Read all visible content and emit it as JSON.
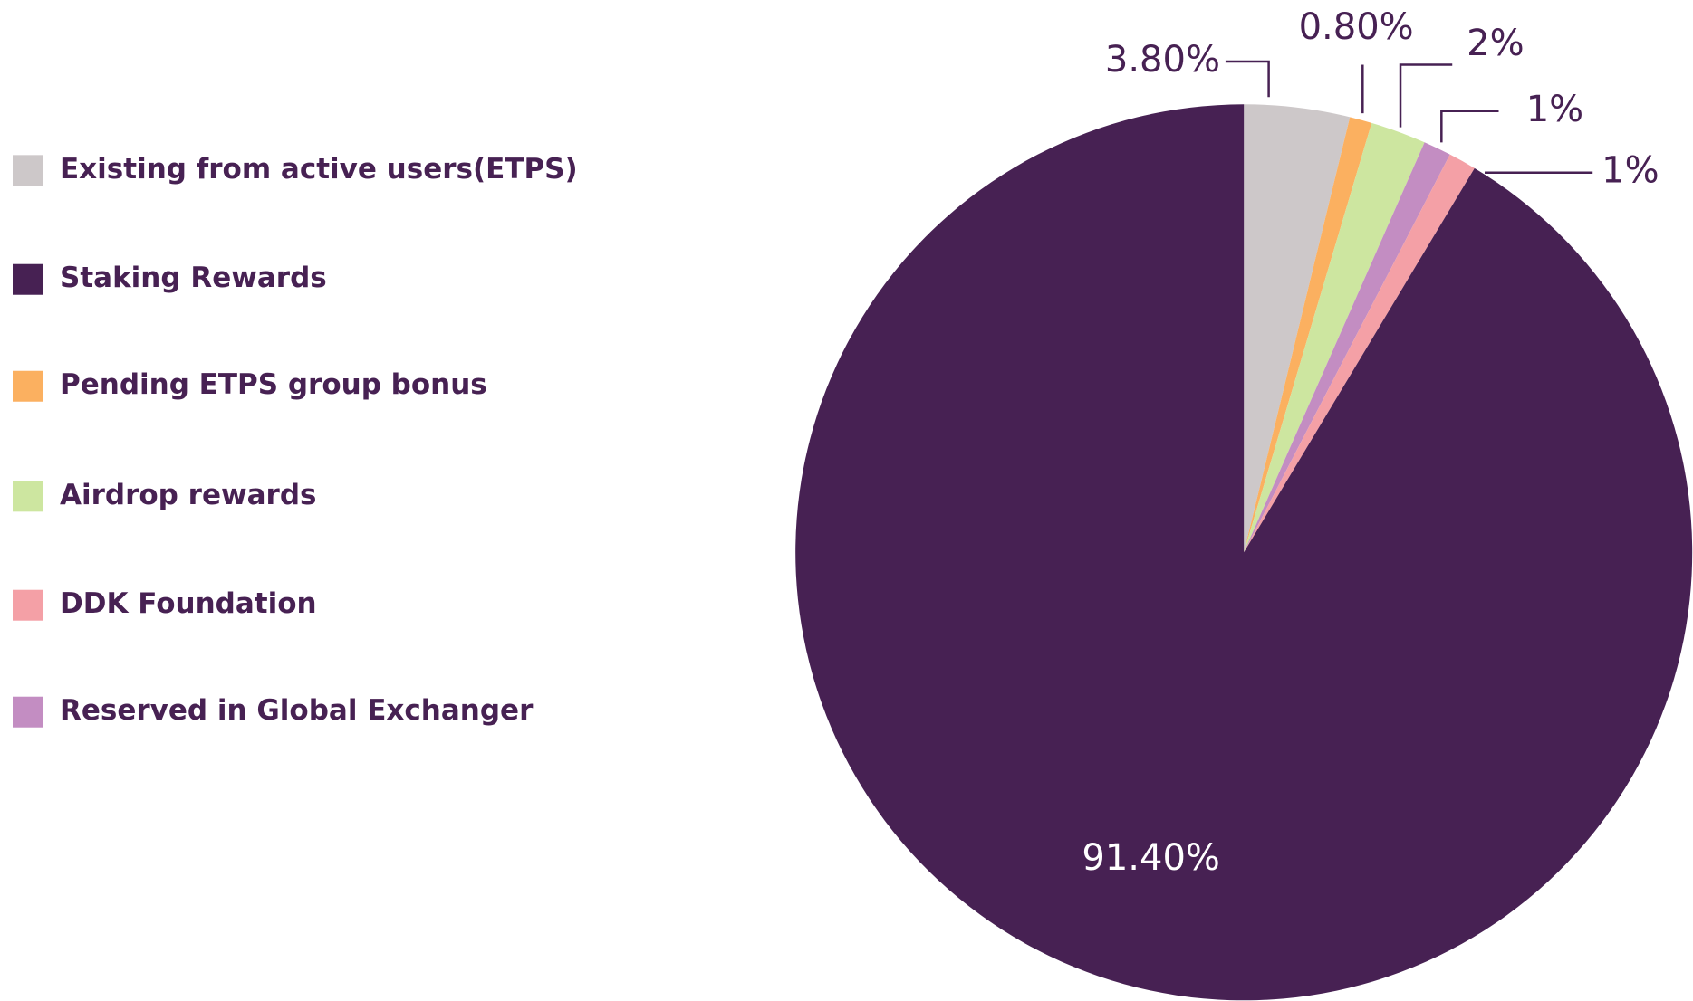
{
  "chart_data": {
    "type": "pie",
    "categories": [
      "Existing from active users(ETPS)",
      "Staking Rewards",
      "Pending ETPS group bonus",
      "Airdrop rewards",
      "DDK Foundation",
      "Reserved in Global Exchanger"
    ],
    "values": [
      3.8,
      91.4,
      0.8,
      2,
      1,
      1
    ],
    "value_labels": [
      "3.80%",
      "91.40%",
      "0.80%",
      "2%",
      "1%",
      "1%"
    ],
    "colors": [
      "#cdc8c9",
      "#472153",
      "#fbb060",
      "#cde6a0",
      "#f4a0a6",
      "#c38dc2"
    ],
    "legend": "left"
  }
}
